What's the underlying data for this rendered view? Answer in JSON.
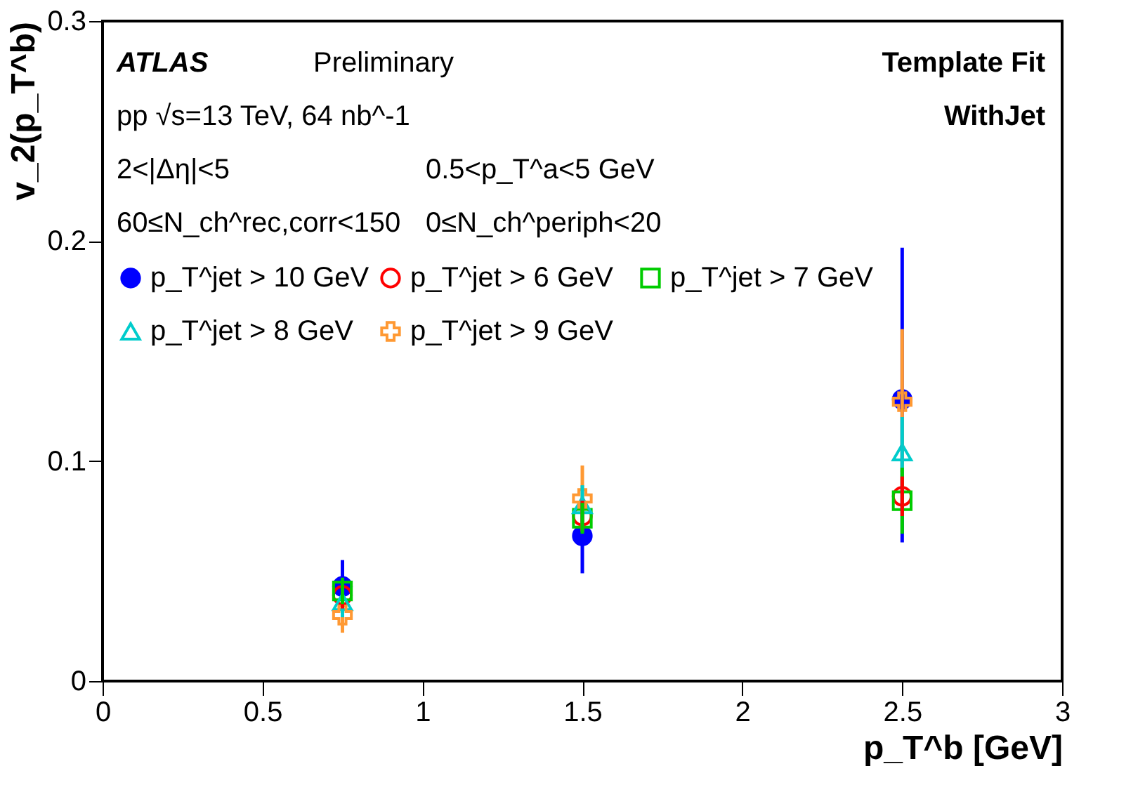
{
  "chart_data": {
    "type": "scatter",
    "xlabel": "p_T^b [GeV]",
    "ylabel": "v_2(p_T^b)",
    "x": [
      0.75,
      1.5,
      2.5
    ],
    "series": [
      {
        "name": "p_T^jet > 10 GeV",
        "color": "#0000ff",
        "marker": "circle",
        "values": [
          0.043,
          0.066,
          0.128
        ],
        "errors": [
          [
            0.031,
            0.055
          ],
          [
            0.049,
            0.083
          ],
          [
            0.063,
            0.197
          ]
        ]
      },
      {
        "name": "p_T^jet > 6 GeV",
        "color": "#ff0000",
        "marker": "circle",
        "values": [
          0.039,
          0.075,
          0.084
        ],
        "errors": [
          [
            0.033,
            0.045
          ],
          [
            0.068,
            0.082
          ],
          [
            0.075,
            0.093
          ]
        ]
      },
      {
        "name": "p_T^jet > 7 GeV",
        "color": "#00cc00",
        "marker": "square",
        "values": [
          0.041,
          0.074,
          0.082
        ],
        "errors": [
          [
            0.035,
            0.047
          ],
          [
            0.067,
            0.081
          ],
          [
            0.067,
            0.097
          ]
        ]
      },
      {
        "name": "p_T^jet > 8 GeV",
        "color": "#00cccc",
        "marker": "triangle",
        "values": [
          0.036,
          0.08,
          0.104
        ],
        "errors": [
          [
            0.029,
            0.043
          ],
          [
            0.071,
            0.089
          ],
          [
            0.088,
            0.12
          ]
        ]
      },
      {
        "name": "p_T^jet > 9 GeV",
        "color": "#ff9933",
        "marker": "cross",
        "values": [
          0.03,
          0.083,
          0.127
        ],
        "errors": [
          [
            0.022,
            0.042
          ],
          [
            0.068,
            0.098
          ],
          [
            0.095,
            0.16
          ]
        ]
      }
    ],
    "xlim": [
      0,
      3
    ],
    "xticks": [
      0,
      0.5,
      1,
      1.5,
      2,
      2.5,
      3
    ],
    "ylim": [
      0,
      0.3
    ],
    "yticks": [
      0,
      0.1,
      0.2,
      0.3
    ],
    "grid": false,
    "legend": "top left",
    "annotations": [
      "ATLAS",
      "Preliminary",
      "pp √s=13 TeV, 64 nb^-1",
      "2<|Δη|<5",
      "0.5<p_T^a<5 GeV",
      "60≤N_ch^rec,corr<150",
      "0≤N_ch^periph<20",
      "Template Fit",
      "WithJet"
    ]
  }
}
